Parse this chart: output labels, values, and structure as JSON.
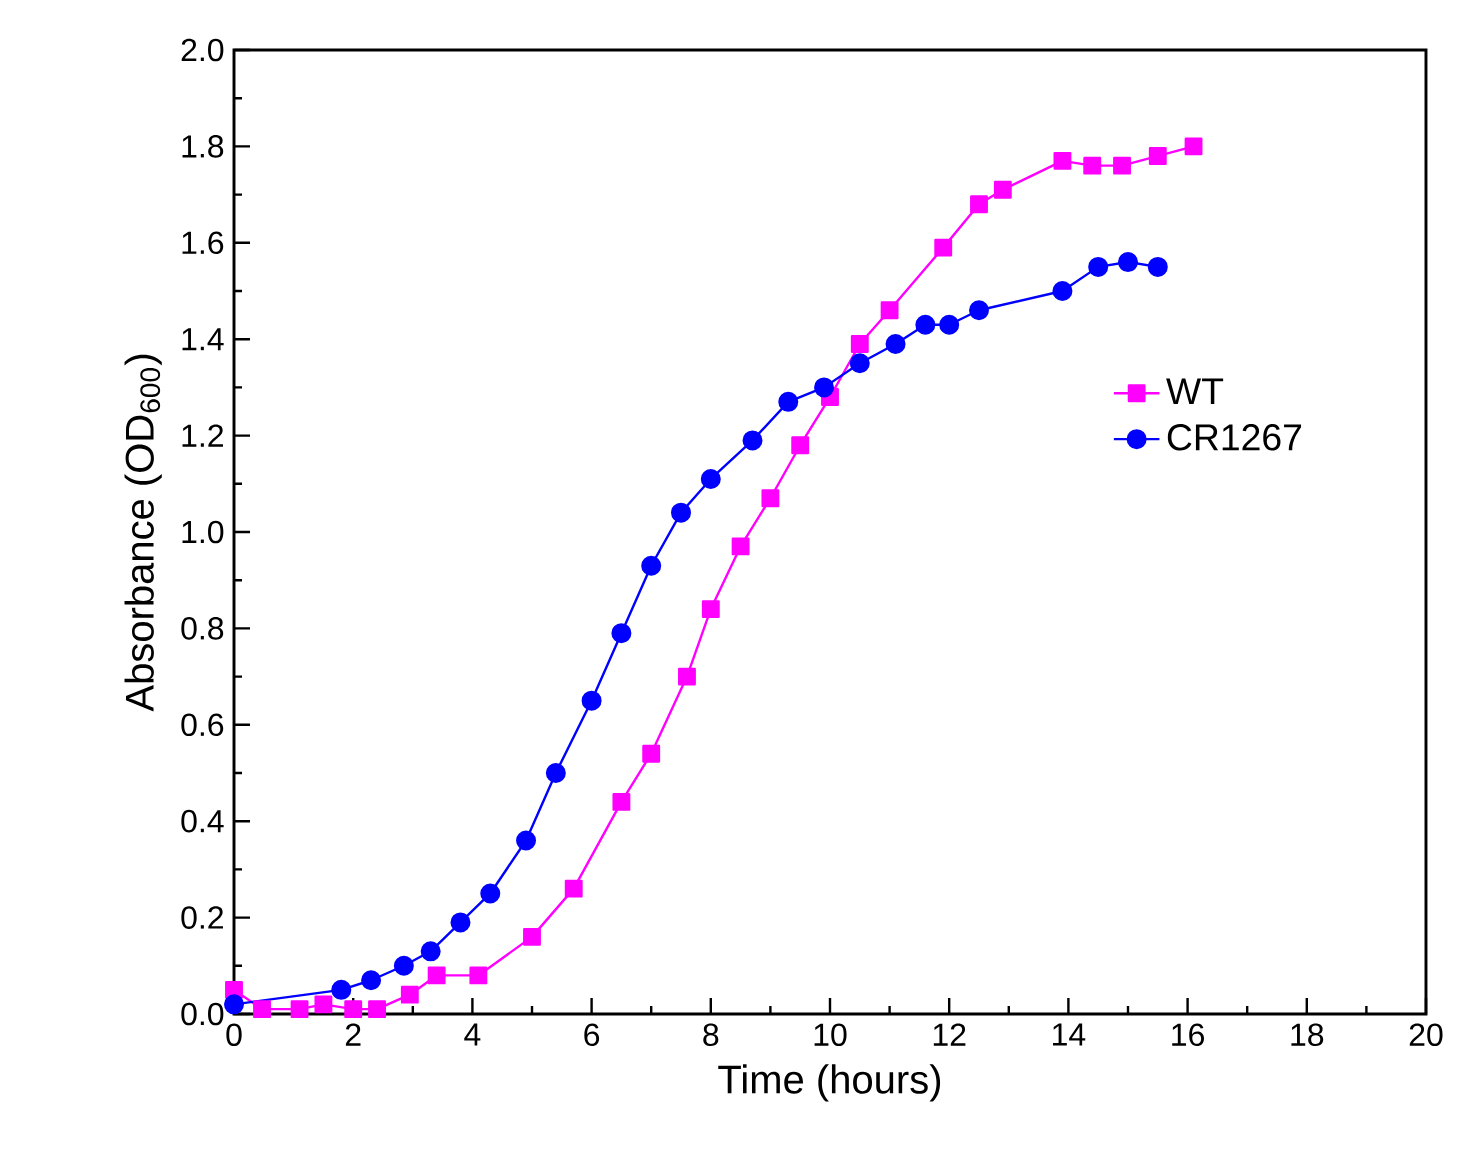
{
  "chart_data": {
    "type": "line",
    "xlabel": "Time (hours)",
    "ylabel": "Absorbance (OD$_{600}$)",
    "xlim": [
      0,
      20
    ],
    "ylim": [
      0,
      2.0
    ],
    "xticks": [
      0,
      2,
      4,
      6,
      8,
      10,
      12,
      14,
      16,
      18,
      20
    ],
    "yticks": [
      {
        "value": 0,
        "label": "0.0"
      },
      {
        "value": 0.2,
        "label": "0.2"
      },
      {
        "value": 0.4,
        "label": "0.4"
      },
      {
        "value": 0.6,
        "label": "0.6"
      },
      {
        "value": 0.8,
        "label": "0.8"
      },
      {
        "value": 1.0,
        "label": "1.0"
      },
      {
        "value": 1.2,
        "label": "1.2"
      },
      {
        "value": 1.4,
        "label": "1.4"
      },
      {
        "value": 1.6,
        "label": "1.6"
      },
      {
        "value": 1.8,
        "label": "1.8"
      },
      {
        "value": 2.0,
        "label": "2.0"
      }
    ],
    "grid": false,
    "legend": "right",
    "line_style": "solid",
    "series": [
      {
        "name": "WT",
        "color": "#ff00ff",
        "marker": "square",
        "x": [
          0,
          0.47,
          1.1,
          1.5,
          2.0,
          2.4,
          2.95,
          3.4,
          4.1,
          5.0,
          5.7,
          6.5,
          7.0,
          7.6,
          8.0,
          8.5,
          9.0,
          9.5,
          10.0,
          10.5,
          11.0,
          11.9,
          12.5,
          12.9,
          13.9,
          14.4,
          14.9,
          15.5,
          16.1
        ],
        "values": [
          0.05,
          0.01,
          0.01,
          0.02,
          0.01,
          0.01,
          0.04,
          0.08,
          0.08,
          0.16,
          0.26,
          0.44,
          0.54,
          0.7,
          0.84,
          0.97,
          1.07,
          1.18,
          1.28,
          1.39,
          1.46,
          1.59,
          1.68,
          1.71,
          1.77,
          1.76,
          1.76,
          1.78,
          1.8
        ]
      },
      {
        "name": "CR1267",
        "color": "#0000ff",
        "marker": "circle",
        "x": [
          0,
          1.8,
          2.3,
          2.85,
          3.3,
          3.8,
          4.3,
          4.9,
          5.4,
          6.0,
          6.5,
          7.0,
          7.5,
          8.0,
          8.7,
          9.3,
          9.9,
          10.5,
          11.1,
          11.6,
          12.0,
          12.5,
          13.9,
          14.5,
          15.0,
          15.5
        ],
        "values": [
          0.02,
          0.05,
          0.07,
          0.1,
          0.13,
          0.19,
          0.25,
          0.36,
          0.5,
          0.65,
          0.79,
          0.93,
          1.04,
          1.11,
          1.19,
          1.27,
          1.3,
          1.35,
          1.39,
          1.43,
          1.43,
          1.46,
          1.5,
          1.55,
          1.56,
          1.55
        ]
      }
    ]
  }
}
